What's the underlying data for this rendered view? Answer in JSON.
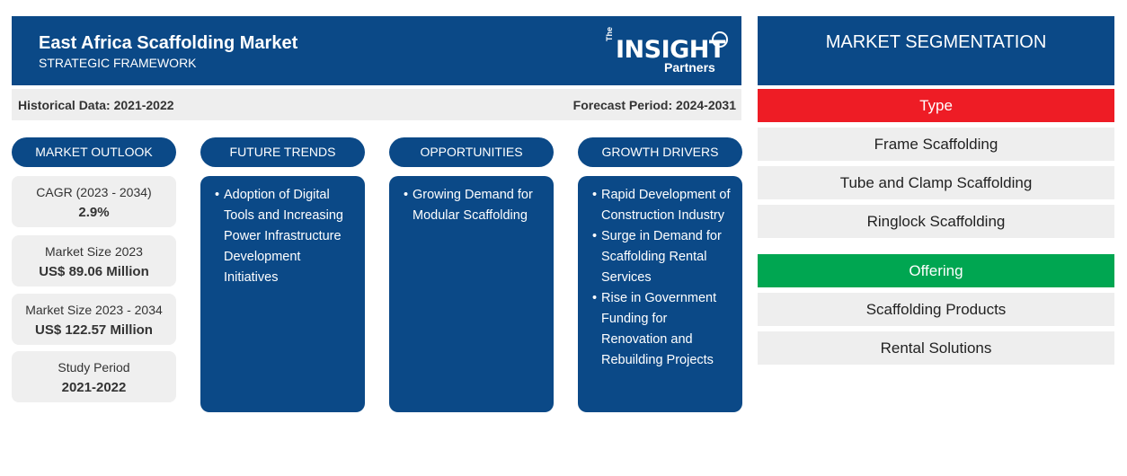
{
  "header": {
    "title": "East Africa Scaffolding Market",
    "subtitle": "STRATEGIC FRAMEWORK",
    "logo": {
      "the": "The",
      "insight": "INSIGHT",
      "partners": "Partners"
    }
  },
  "period_bar": {
    "historical": "Historical Data: 2021-2022",
    "forecast": "Forecast Period: 2024-2031"
  },
  "columns": [
    {
      "heading": "MARKET OUTLOOK"
    },
    {
      "heading": "FUTURE TRENDS",
      "items": [
        "Adoption of Digital Tools and Increasing Power Infrastructure Development Initiatives"
      ]
    },
    {
      "heading": "OPPORTUNITIES",
      "items": [
        "Growing Demand for Modular Scaffolding"
      ]
    },
    {
      "heading": "GROWTH DRIVERS",
      "items": [
        "Rapid Development of Construction Industry",
        "Surge in Demand for Scaffolding Rental Services",
        "Rise in Government Funding for Renovation and Rebuilding Projects"
      ]
    }
  ],
  "outlook": [
    {
      "label": "CAGR (2023 - 2034)",
      "value": "2.9%"
    },
    {
      "label": "Market Size 2023",
      "value": "US$ 89.06 Million"
    },
    {
      "label": "Market Size 2023 - 2034",
      "value": "US$ 122.57 Million"
    },
    {
      "label": "Study Period",
      "value": "2021-2022"
    }
  ],
  "segmentation": {
    "title": "MARKET SEGMENTATION",
    "categories": [
      {
        "name": "Type",
        "color": "#ee1c25",
        "items": [
          "Frame Scaffolding",
          "Tube and Clamp Scaffolding",
          "Ringlock Scaffolding"
        ]
      },
      {
        "name": "Offering",
        "color": "#00a651",
        "items": [
          "Scaffolding Products",
          "Rental Solutions"
        ]
      }
    ]
  }
}
